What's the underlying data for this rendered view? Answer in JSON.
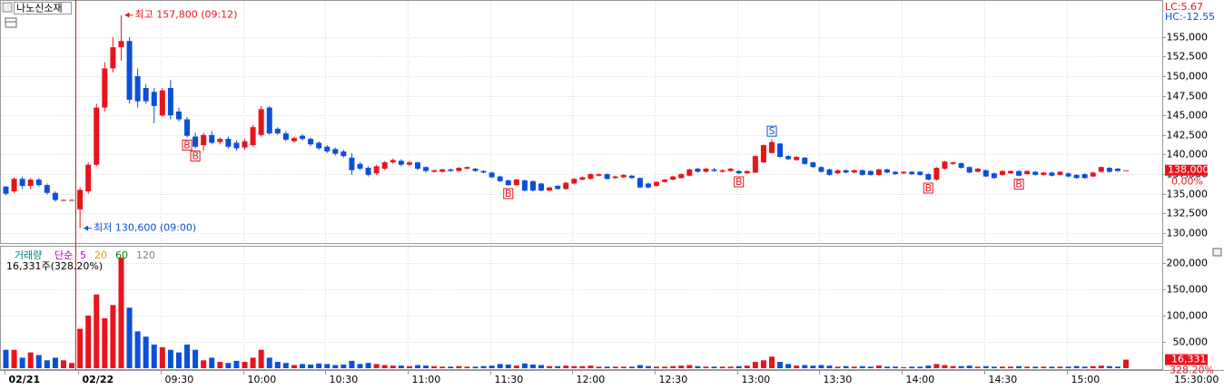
{
  "header": {
    "title": "나노신소재",
    "lc": "LC:5.67",
    "hc": "HC:-12.55"
  },
  "chart_data": [
    {
      "type": "candlestick",
      "ohlc": [
        [
          135900,
          136000,
          134800,
          135000
        ],
        [
          135300,
          137100,
          135100,
          136900
        ],
        [
          136900,
          137200,
          135600,
          136000
        ],
        [
          136000,
          137000,
          135600,
          136800
        ],
        [
          136800,
          137000,
          135900,
          136100
        ],
        [
          136100,
          136300,
          134900,
          135100
        ],
        [
          135100,
          135300,
          134000,
          134200
        ],
        [
          134200,
          134300,
          134100,
          134200
        ],
        [
          134200,
          134300,
          134100,
          134200
        ],
        [
          133000,
          135800,
          130600,
          135500
        ],
        [
          135300,
          139000,
          135000,
          138700
        ],
        [
          138700,
          146500,
          138500,
          146000
        ],
        [
          146000,
          151800,
          145500,
          151000
        ],
        [
          151000,
          155000,
          150500,
          153700
        ],
        [
          153700,
          157800,
          152000,
          154500
        ],
        [
          154500,
          155000,
          146500,
          147000
        ],
        [
          150000,
          151000,
          146000,
          146800
        ],
        [
          148500,
          149000,
          146500,
          146800
        ],
        [
          148000,
          148500,
          144000,
          146200
        ],
        [
          145000,
          148500,
          144800,
          148200
        ],
        [
          148500,
          149500,
          144500,
          145000
        ],
        [
          145500,
          146000,
          144200,
          144500
        ],
        [
          144500,
          144800,
          142200,
          142400
        ],
        [
          142300,
          142800,
          140800,
          141000
        ],
        [
          141200,
          142800,
          140500,
          142500
        ],
        [
          142500,
          143000,
          141300,
          141500
        ],
        [
          141600,
          142200,
          141300,
          142000
        ],
        [
          142000,
          142300,
          140800,
          141000
        ],
        [
          141500,
          141800,
          140500,
          140800
        ],
        [
          140900,
          142000,
          140600,
          141700
        ],
        [
          141200,
          143800,
          141000,
          143500
        ],
        [
          142500,
          146200,
          142300,
          145800
        ],
        [
          146000,
          146200,
          142500,
          142700
        ],
        [
          143300,
          143500,
          142500,
          142700
        ],
        [
          142700,
          143000,
          141700,
          141900
        ],
        [
          141700,
          142300,
          141500,
          142100
        ],
        [
          142400,
          142600,
          141800,
          142000
        ],
        [
          142000,
          142200,
          141100,
          141300
        ],
        [
          141500,
          141700,
          140600,
          140800
        ],
        [
          141000,
          141200,
          140200,
          140400
        ],
        [
          140700,
          140900,
          139900,
          140100
        ],
        [
          140400,
          140600,
          139600,
          139800
        ],
        [
          139600,
          140200,
          137400,
          138000
        ],
        [
          138800,
          139000,
          138000,
          138200
        ],
        [
          138300,
          138500,
          137200,
          137400
        ],
        [
          137600,
          138700,
          137400,
          138500
        ],
        [
          138200,
          139200,
          138000,
          139000
        ],
        [
          139000,
          139500,
          138800,
          139300
        ],
        [
          139200,
          139400,
          138500,
          138700
        ],
        [
          138700,
          139200,
          138500,
          139000
        ],
        [
          139000,
          139100,
          138000,
          138200
        ],
        [
          138400,
          138500,
          137700,
          137900
        ],
        [
          137800,
          138100,
          137700,
          138000
        ],
        [
          137800,
          138200,
          137700,
          138100
        ],
        [
          138100,
          138200,
          137800,
          137900
        ],
        [
          137900,
          138400,
          137800,
          138300
        ],
        [
          138200,
          138500,
          138100,
          138400
        ],
        [
          138200,
          138300,
          137800,
          137900
        ],
        [
          137900,
          138000,
          137600,
          137700
        ],
        [
          137700,
          137800,
          137000,
          137100
        ],
        [
          137200,
          137300,
          136500,
          136600
        ],
        [
          136700,
          136800,
          136000,
          136100
        ],
        [
          136100,
          136900,
          136000,
          136800
        ],
        [
          136700,
          136800,
          135300,
          135400
        ],
        [
          136600,
          136700,
          135300,
          135400
        ],
        [
          136300,
          136400,
          135300,
          135400
        ],
        [
          135400,
          135900,
          135300,
          135800
        ],
        [
          136000,
          136100,
          135500,
          135600
        ],
        [
          135600,
          136500,
          135500,
          136400
        ],
        [
          136300,
          137000,
          136200,
          136900
        ],
        [
          136800,
          137200,
          136700,
          137100
        ],
        [
          136900,
          137600,
          136800,
          137500
        ],
        [
          137300,
          137600,
          137200,
          137500
        ],
        [
          137500,
          137600,
          136800,
          136900
        ],
        [
          137000,
          137300,
          136900,
          137200
        ],
        [
          137100,
          137500,
          137000,
          137400
        ],
        [
          137300,
          137400,
          136900,
          137000
        ],
        [
          137000,
          137100,
          135700,
          135800
        ],
        [
          136300,
          136400,
          135700,
          135800
        ],
        [
          136000,
          136600,
          135900,
          136500
        ],
        [
          136500,
          136900,
          136400,
          136800
        ],
        [
          136800,
          137300,
          136700,
          137200
        ],
        [
          137000,
          137600,
          136900,
          137500
        ],
        [
          137300,
          138200,
          137200,
          138100
        ],
        [
          138200,
          138300,
          137700,
          137800
        ],
        [
          137800,
          138300,
          137700,
          138200
        ],
        [
          138100,
          138300,
          137800,
          137900
        ],
        [
          137800,
          138100,
          137700,
          138000
        ],
        [
          137900,
          138300,
          137800,
          138200
        ],
        [
          137900,
          138000,
          137500,
          137600
        ],
        [
          137600,
          138000,
          137500,
          137900
        ],
        [
          137700,
          139900,
          137600,
          139800
        ],
        [
          139000,
          141300,
          138900,
          141200
        ],
        [
          140200,
          142000,
          140100,
          141600
        ],
        [
          141400,
          141500,
          139600,
          139700
        ],
        [
          139800,
          139900,
          139300,
          139400
        ],
        [
          139300,
          139800,
          139200,
          139700
        ],
        [
          139600,
          139700,
          138700,
          138800
        ],
        [
          139000,
          139100,
          138300,
          138400
        ],
        [
          138400,
          138500,
          137700,
          137800
        ],
        [
          138100,
          138200,
          137300,
          137400
        ],
        [
          137600,
          138100,
          137500,
          138000
        ],
        [
          138000,
          138100,
          137600,
          137700
        ],
        [
          137700,
          138100,
          137600,
          138000
        ],
        [
          138000,
          138100,
          137300,
          137400
        ],
        [
          137900,
          138000,
          137300,
          137400
        ],
        [
          137400,
          138200,
          137300,
          138100
        ],
        [
          138100,
          138200,
          137600,
          137700
        ],
        [
          137800,
          137900,
          137400,
          137500
        ],
        [
          137600,
          137900,
          137500,
          137800
        ],
        [
          137800,
          137900,
          137400,
          137500
        ],
        [
          137800,
          137900,
          137300,
          137400
        ],
        [
          137500,
          137600,
          136700,
          136800
        ],
        [
          136800,
          138400,
          136700,
          138300
        ],
        [
          138200,
          139200,
          138100,
          139100
        ],
        [
          138800,
          139100,
          138700,
          139000
        ],
        [
          138900,
          139000,
          138200,
          138300
        ],
        [
          138400,
          138500,
          137600,
          137700
        ],
        [
          137800,
          138300,
          137700,
          138200
        ],
        [
          138000,
          138100,
          137100,
          137200
        ],
        [
          137600,
          137700,
          136900,
          137000
        ],
        [
          137400,
          138000,
          137300,
          137900
        ],
        [
          137600,
          138000,
          137500,
          137900
        ],
        [
          137900,
          138000,
          137200,
          137300
        ],
        [
          137500,
          138000,
          137400,
          137900
        ],
        [
          137800,
          137900,
          137300,
          137400
        ],
        [
          137400,
          137800,
          137300,
          137700
        ],
        [
          137700,
          137800,
          137200,
          137300
        ],
        [
          137400,
          137900,
          137300,
          137800
        ],
        [
          137600,
          137700,
          137100,
          137200
        ],
        [
          137400,
          137500,
          136900,
          137000
        ],
        [
          137500,
          137600,
          136900,
          137000
        ],
        [
          137200,
          137800,
          137100,
          137700
        ],
        [
          137800,
          138500,
          137700,
          138400
        ],
        [
          138300,
          138400,
          137700,
          137800
        ],
        [
          138200,
          138300,
          137800,
          137900
        ],
        [
          138000,
          138000,
          138000,
          138000
        ]
      ],
      "signals": [
        null,
        null,
        null,
        null,
        null,
        null,
        null,
        null,
        null,
        null,
        null,
        null,
        null,
        null,
        null,
        null,
        null,
        null,
        null,
        null,
        null,
        null,
        "B",
        "B",
        null,
        null,
        null,
        null,
        null,
        null,
        null,
        null,
        null,
        null,
        null,
        null,
        null,
        null,
        null,
        null,
        null,
        null,
        null,
        null,
        null,
        null,
        null,
        null,
        null,
        null,
        null,
        null,
        null,
        null,
        null,
        null,
        null,
        null,
        null,
        null,
        null,
        "B",
        null,
        null,
        null,
        null,
        null,
        null,
        null,
        null,
        null,
        null,
        null,
        null,
        null,
        null,
        null,
        null,
        null,
        null,
        null,
        null,
        null,
        null,
        null,
        null,
        null,
        null,
        null,
        "B",
        null,
        null,
        null,
        "S",
        null,
        null,
        null,
        null,
        null,
        null,
        null,
        null,
        null,
        null,
        null,
        null,
        null,
        null,
        null,
        null,
        null,
        null,
        "B",
        null,
        null,
        null,
        null,
        null,
        null,
        null,
        null,
        null,
        null,
        "B",
        null,
        null,
        null,
        null,
        null,
        null,
        null,
        null,
        null,
        null,
        null,
        null,
        null
      ],
      "ylim": [
        128700,
        159500
      ],
      "yticks": [
        {
          "value": 130000,
          "label": "130,000"
        },
        {
          "value": 132500,
          "label": "132,500"
        },
        {
          "value": 135000,
          "label": "135,000"
        },
        {
          "value": 137500,
          "label": "137,500"
        },
        {
          "value": 140000,
          "label": "140,000"
        },
        {
          "value": 142500,
          "label": "142,500"
        },
        {
          "value": 145000,
          "label": "145,000"
        },
        {
          "value": 147500,
          "label": "147,500"
        },
        {
          "value": 150000,
          "label": "150,000"
        },
        {
          "value": 152500,
          "label": "152,500"
        },
        {
          "value": 155000,
          "label": "155,000"
        }
      ],
      "high_note": {
        "label": "최고 157,800 (09:12)",
        "value": 157800
      },
      "low_note": {
        "label": "최저 130,600 (09:00)",
        "value": 130600
      },
      "last_price": {
        "value": 138000,
        "label": "138,000"
      },
      "change_label": "0.00%",
      "up_color": "#e8141c",
      "down_color": "#0b50d8",
      "grid": true,
      "x_labels": [
        "02/21",
        "02/22",
        "09:30",
        "10:00",
        "10:30",
        "11:00",
        "11:30",
        "12:00",
        "12:30",
        "13:00",
        "13:30",
        "14:00",
        "14:30",
        "15:00"
      ],
      "x_end_label": "15:30:00"
    },
    {
      "type": "volume",
      "title": "거래량",
      "ma_label": "단순",
      "ma_periods": [
        {
          "value": 5,
          "color": "#c000c0"
        },
        {
          "value": 20,
          "color": "#e0a000"
        },
        {
          "value": 60,
          "color": "#008000"
        },
        {
          "value": 120,
          "color": "#808080"
        }
      ],
      "values": [
        35000,
        35000,
        20000,
        30000,
        25000,
        15000,
        20000,
        15000,
        10000,
        75000,
        100000,
        140000,
        95000,
        120000,
        210000,
        115000,
        70000,
        60000,
        45000,
        40000,
        35000,
        30000,
        45000,
        35000,
        15000,
        20000,
        12000,
        10000,
        14000,
        12000,
        20000,
        35000,
        20000,
        12000,
        10000,
        6000,
        8000,
        7000,
        9000,
        8000,
        6000,
        7000,
        14000,
        8000,
        10000,
        8000,
        6000,
        5000,
        5000,
        4000,
        6000,
        5000,
        4000,
        3000,
        3000,
        4000,
        3000,
        3000,
        4000,
        5000,
        8000,
        7000,
        5000,
        9000,
        7000,
        6000,
        4000,
        4000,
        5000,
        4000,
        4000,
        5000,
        3000,
        3000,
        3000,
        3000,
        3000,
        6000,
        4000,
        3000,
        3000,
        4000,
        5000,
        6000,
        4000,
        3000,
        3000,
        3000,
        3000,
        4000,
        5000,
        12000,
        15000,
        22000,
        12000,
        8000,
        5000,
        6000,
        5000,
        6000,
        5000,
        3000,
        4000,
        3000,
        4000,
        3000,
        5000,
        3000,
        3000,
        2000,
        3000,
        3000,
        5000,
        8000,
        6000,
        4000,
        4000,
        5000,
        3000,
        4000,
        3000,
        3000,
        3000,
        4000,
        3000,
        3000,
        3000,
        3000,
        3000,
        3000,
        4000,
        3000,
        4000,
        5000,
        4000,
        3000,
        16331
      ],
      "ylim": [
        0,
        217000
      ],
      "yticks": [
        {
          "value": 50000,
          "label": "50,000"
        },
        {
          "value": 100000,
          "label": "100,000"
        },
        {
          "value": 150000,
          "label": "150,000"
        },
        {
          "value": 200000,
          "label": "200,000"
        }
      ],
      "readout": "16,331주(328.20%)",
      "last": {
        "value": 16331,
        "label": "16,331"
      },
      "ratio_label": "328.20%"
    }
  ]
}
